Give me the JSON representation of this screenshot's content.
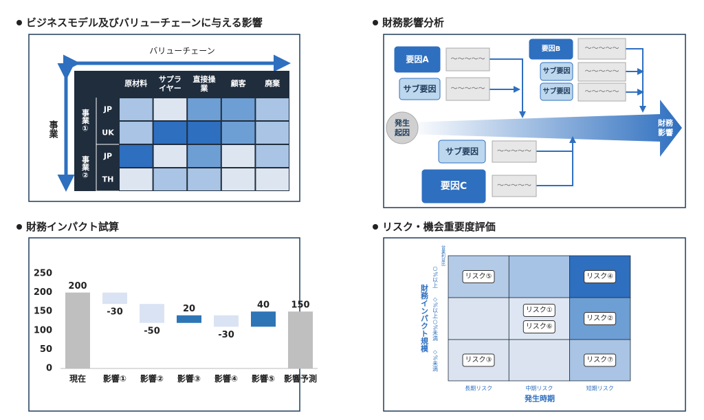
{
  "value_chain": {
    "title": "ビジネスモデル及びバリューチェーンに与える影響",
    "axis_label": "バリューチェーン",
    "vertical_label": "事業",
    "columns": [
      "原材料",
      "サプライヤー",
      "直接操業",
      "顧客",
      "廃棄"
    ],
    "groups": [
      {
        "label": "事業①",
        "rows": [
          "JP",
          "UK"
        ]
      },
      {
        "label": "事業②",
        "rows": [
          "JP",
          "TH"
        ]
      }
    ],
    "cells": [
      [
        "#a9c4e4",
        "#dde5f1",
        "#6e9fd4",
        "#6e9fd4",
        "#a9c4e4"
      ],
      [
        "#a9c4e4",
        "#2e6fbf",
        "#2e6fbf",
        "#6e9fd4",
        "#a9c4e4"
      ],
      [
        "#2e6fbf",
        "#dde5f1",
        "#6e9fd4",
        "#dde5f1",
        "#a9c4e4"
      ],
      [
        "#dde5f1",
        "#a9c4e4",
        "#a9c4e4",
        "#dde5f1",
        "#dde5f1"
      ]
    ]
  },
  "factor_analysis": {
    "title": "財務影響分析",
    "factors": [
      "要因A",
      "サブ要因",
      "要因B",
      "サブ要因",
      "サブ要因",
      "サブ要因",
      "要因C"
    ],
    "placeholders": [
      "～～～～～",
      "～～～～～",
      "～～～～～",
      "～～～～～",
      "～～～～～",
      "～～～～～",
      "～～～～～"
    ],
    "origin": [
      "発生",
      "起因"
    ],
    "impact": [
      "財務",
      "影響"
    ]
  },
  "chart_data": {
    "type": "waterfall",
    "title": "財務インパクト試算",
    "categories": [
      "現在",
      "影響①",
      "影響②",
      "影響③",
      "影響④",
      "影響⑤",
      "影響予測"
    ],
    "values": [
      200,
      -30,
      -50,
      20,
      -30,
      40,
      150
    ],
    "measures": [
      "total",
      "relative",
      "relative",
      "relative",
      "relative",
      "relative",
      "total"
    ],
    "colors": {
      "total": "#bfbfbf",
      "increase": "#2e75b6",
      "decrease": "#dae3f3"
    },
    "ylim": [
      0,
      250
    ],
    "yticks": [
      0,
      50,
      100,
      150,
      200,
      250
    ]
  },
  "risk_matrix": {
    "title": "リスク・機会重要度評価",
    "x_label": "発生時期",
    "y_label": "財務インパクト規模",
    "y_note": "営業利益比",
    "x_categories": [
      "長期リスク",
      "中期リスク",
      "短期リスク"
    ],
    "y_categories": [
      "○%以上",
      "◇%以上○%未満",
      "◇%未満"
    ],
    "cell_colors": [
      [
        "#b4cbe8",
        "#a6c2e4",
        "#2f6fbf"
      ],
      [
        "#dbe3f0",
        "#dde6f2",
        "#6e9fd4"
      ],
      [
        "#dbe3f0",
        "#dbe3f0",
        "#a9c4e4"
      ]
    ],
    "cells": [
      [
        [
          "リスク⑤"
        ],
        [],
        [
          "リスク④"
        ]
      ],
      [
        [],
        [
          "リスク①",
          "リスク⑥"
        ],
        [
          "リスク②"
        ]
      ],
      [
        [
          "リスク③"
        ],
        [],
        [
          "リスク⑦"
        ]
      ]
    ]
  }
}
